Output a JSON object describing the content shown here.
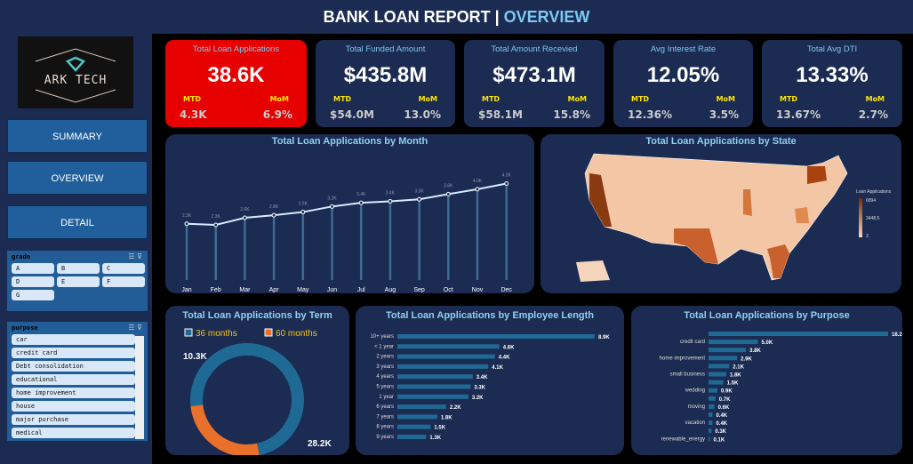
{
  "header": {
    "title": "BANK LOAN REPORT | ",
    "highlight": "OVERVIEW"
  },
  "logo": {
    "text": "ARK TECH"
  },
  "nav": [
    "SUMMARY",
    "OVERVIEW",
    "DETAIL"
  ],
  "slicers": {
    "grade": {
      "title": "grade",
      "items": [
        "A",
        "B",
        "C",
        "D",
        "E",
        "F",
        "G"
      ]
    },
    "purpose": {
      "title": "purpose",
      "items": [
        "car",
        "credit card",
        "Debt consolidation",
        "educational",
        "home improvement",
        "house",
        "major purchase",
        "medical"
      ]
    }
  },
  "kpis": [
    {
      "title": "Total Loan Applications",
      "value": "38.6K",
      "mtd_label": "MTD",
      "mtd": "4.3K",
      "mom_label": "MoM",
      "mom": "6.9%"
    },
    {
      "title": "Total Funded Amount",
      "value": "$435.8M",
      "mtd_label": "MTD",
      "mtd": "$54.0M",
      "mom_label": "MoM",
      "mom": "13.0%"
    },
    {
      "title": "Total Amount Recevied",
      "value": "$473.1M",
      "mtd_label": "MTD",
      "mtd": "$58.1M",
      "mom_label": "MoM",
      "mom": "15.8%"
    },
    {
      "title": "Avg Interest Rate",
      "value": "12.05%",
      "mtd_label": "MTD",
      "mtd": "12.36%",
      "mom_label": "MoM",
      "mom": "3.5%"
    },
    {
      "title": "Total Avg DTI",
      "value": "13.33%",
      "mtd_label": "MTD",
      "mtd": "13.67%",
      "mom_label": "MoM",
      "mom": "2.7%"
    }
  ],
  "colors": {
    "accent": "#7ec8ef",
    "highlight_card": "#e60000",
    "bar": "#1f6a94",
    "orange": "#e8702a",
    "teal": "#1f6a94"
  },
  "chart_data": [
    {
      "type": "line",
      "title": "Total Loan Applications by Month",
      "categories": [
        "Jan",
        "Feb",
        "Mar",
        "Apr",
        "May",
        "Jun",
        "Jul",
        "Aug",
        "Sep",
        "Oct",
        "Nov",
        "Dec"
      ],
      "values": [
        2332,
        2279,
        2627,
        2755,
        2911,
        3184,
        3366,
        3441,
        3536,
        3796,
        4035,
        4314
      ],
      "labels": [
        "2.3K",
        "2.3K",
        "2.6K",
        "2.8K",
        "2.9K",
        "3.2K",
        "3.4K",
        "3.4K",
        "3.5K",
        "3.8K",
        "4.0K",
        "4.3K"
      ]
    },
    {
      "type": "heatmap",
      "title": "Total Loan Applications by State",
      "legend_title": "Loan Applications",
      "legend_ticks": [
        "6894",
        "3448.5",
        "3"
      ]
    },
    {
      "type": "pie",
      "title": "Total Loan Applications by Term",
      "series": [
        {
          "name": "36 months",
          "value": 28.2,
          "label": "28.2K"
        },
        {
          "name": "60 months",
          "value": 10.3,
          "label": "10.3K"
        }
      ]
    },
    {
      "type": "bar",
      "title": "Total Loan Applications by Employee Length",
      "categories": [
        "10+ years",
        "< 1 year",
        "2 years",
        "3 years",
        "4 years",
        "5 years",
        "1 year",
        "6 years",
        "7 years",
        "8 years",
        "9 years"
      ],
      "values": [
        8.9,
        4.6,
        4.4,
        4.1,
        3.4,
        3.3,
        3.2,
        2.2,
        1.8,
        1.5,
        1.3
      ],
      "labels": [
        "8.9K",
        "4.6K",
        "4.4K",
        "4.1K",
        "3.4K",
        "3.3K",
        "3.2K",
        "2.2K",
        "1.8K",
        "1.5K",
        "1.3K"
      ]
    },
    {
      "type": "bar",
      "title": "Total Loan Applications by Purpose",
      "categories": [
        "",
        "credit card",
        "",
        "home improvement",
        "",
        "small business",
        "",
        "wedding",
        "",
        "moving",
        "",
        "vacation",
        "",
        "renewable_energy"
      ],
      "values": [
        18.2,
        5.0,
        3.8,
        2.9,
        2.1,
        1.8,
        1.5,
        0.9,
        0.7,
        0.6,
        0.4,
        0.4,
        0.3,
        0.1
      ],
      "labels": [
        "18.2K",
        "5.0K",
        "3.8K",
        "2.9K",
        "2.1K",
        "1.8K",
        "1.5K",
        "0.9K",
        "0.7K",
        "0.6K",
        "0.4K",
        "0.4K",
        "0.3K",
        "0.1K"
      ]
    }
  ]
}
